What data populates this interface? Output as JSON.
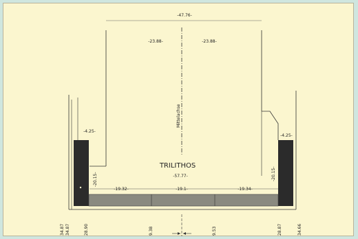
{
  "drawing": {
    "top_dimension": "-47.76-",
    "left_half_dimension": "-23.88-",
    "right_half_dimension": "-23.88-",
    "axis_label": "Mittelachse",
    "left_column_width": "-4.25-",
    "right_column_width": "-4.25-",
    "left_column_height": "-20.15-",
    "right_column_height": "-20.15-",
    "title": "TRILITHOS",
    "base_dimension": "-57.77-",
    "base_segment_left": "-19.32-",
    "base_segment_middle": "-19.1-",
    "base_segment_right": "-19.34-",
    "bottom_labels": {
      "far_left_a": "34.87",
      "far_left_b": "34.87",
      "left": "28.90",
      "center_left": "9.38",
      "center_right": "9.53",
      "right": "28.87",
      "far_right": "34.66"
    },
    "colors": {
      "background": "#cfe6df",
      "paper": "#fbf6cf",
      "ink": "#222222",
      "column_fill": "#2b2b2b",
      "base_fill": "#8a8a80"
    }
  }
}
